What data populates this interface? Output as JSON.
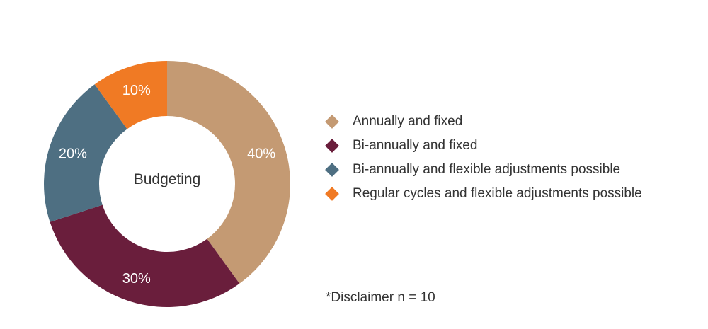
{
  "chart_data": {
    "type": "pie",
    "center_label": "Budgeting",
    "legend_position": "right",
    "slices": [
      {
        "label": "Annually and fixed",
        "value": 40,
        "value_text": "40%",
        "color": "#C49A73"
      },
      {
        "label": "Bi-annually and fixed",
        "value": 30,
        "value_text": "30%",
        "color": "#6A1E3C"
      },
      {
        "label": "Bi-annually and flexible adjustments possible",
        "value": 20,
        "value_text": "20%",
        "color": "#4E6F82"
      },
      {
        "label": "Regular cycles and flexible adjustments possible",
        "value": 10,
        "value_text": "10%",
        "color": "#F07A24"
      }
    ]
  },
  "footnote": "*Disclaimer n = 10"
}
